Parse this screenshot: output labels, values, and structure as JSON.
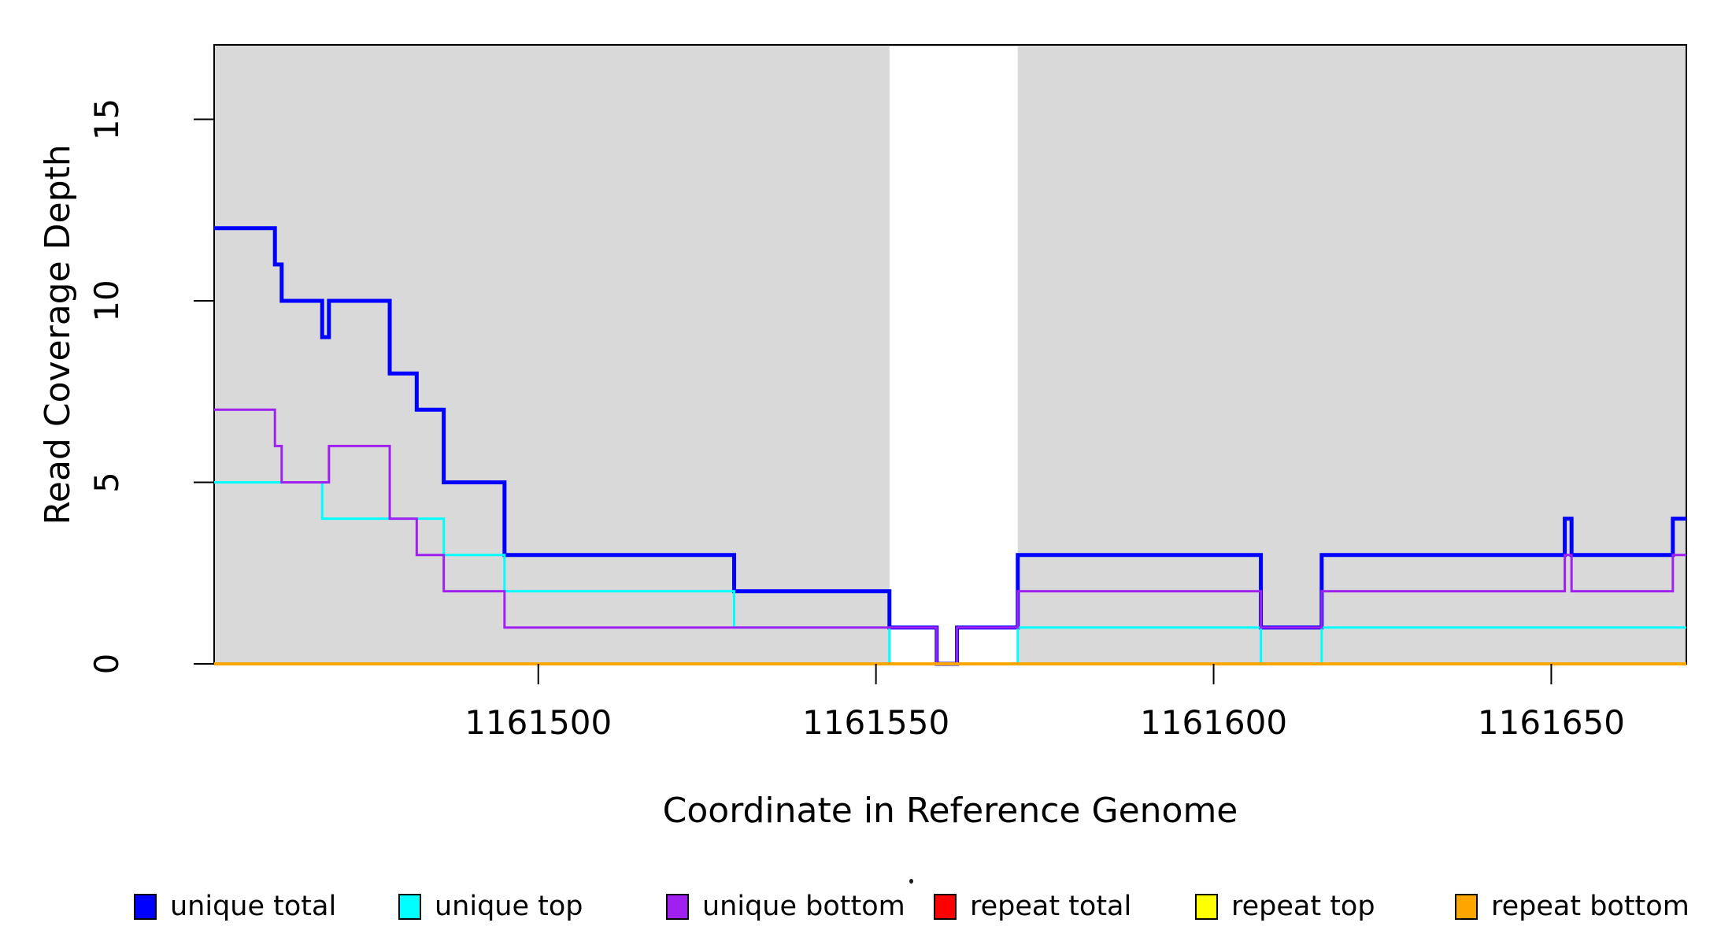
{
  "chart_data": {
    "type": "line",
    "subtype": "step",
    "title": "",
    "xlabel": "Coordinate in Reference Genome",
    "ylabel": "Read Coverage Depth",
    "xlim": [
      1161452,
      1161670
    ],
    "ylim": [
      0,
      17.05
    ],
    "x_ticks": [
      1161500,
      1161550,
      1161600,
      1161650
    ],
    "x_tick_labels": [
      "1161500",
      "1161550",
      "1161600",
      "1161650"
    ],
    "y_ticks": [
      0,
      5,
      10,
      15
    ],
    "y_tick_labels": [
      "0",
      "5",
      "10",
      "15"
    ],
    "grid": false,
    "legend_position": "bottom",
    "background_covered_color": "#d9d9d9",
    "uncovered_gap_x": [
      1161552,
      1161571
    ],
    "series": [
      {
        "name": "unique total",
        "color": "#0000ff",
        "stroke_width": 5,
        "steps": [
          [
            1161452,
            12
          ],
          [
            1161461,
            11
          ],
          [
            1161462,
            10
          ],
          [
            1161468,
            9
          ],
          [
            1161469,
            10
          ],
          [
            1161478,
            8
          ],
          [
            1161482,
            7
          ],
          [
            1161486,
            5
          ],
          [
            1161495,
            3
          ],
          [
            1161529,
            2
          ],
          [
            1161552,
            1
          ],
          [
            1161559,
            0
          ],
          [
            1161562,
            1
          ],
          [
            1161571,
            3
          ],
          [
            1161607,
            1
          ],
          [
            1161616,
            3
          ],
          [
            1161652,
            4
          ],
          [
            1161653,
            3
          ],
          [
            1161668,
            4
          ]
        ]
      },
      {
        "name": "unique top",
        "color": "#00ffff",
        "stroke_width": 3,
        "steps": [
          [
            1161452,
            5
          ],
          [
            1161468,
            4
          ],
          [
            1161486,
            3
          ],
          [
            1161495,
            2
          ],
          [
            1161529,
            1
          ],
          [
            1161552,
            0
          ],
          [
            1161571,
            1
          ],
          [
            1161607,
            0
          ],
          [
            1161616,
            1
          ]
        ]
      },
      {
        "name": "unique bottom",
        "color": "#a020f0",
        "stroke_width": 3,
        "steps": [
          [
            1161452,
            7
          ],
          [
            1161461,
            6
          ],
          [
            1161462,
            5
          ],
          [
            1161469,
            6
          ],
          [
            1161478,
            4
          ],
          [
            1161482,
            3
          ],
          [
            1161486,
            2
          ],
          [
            1161495,
            1
          ],
          [
            1161559,
            0
          ],
          [
            1161562,
            1
          ],
          [
            1161571,
            2
          ],
          [
            1161607,
            1
          ],
          [
            1161616,
            2
          ],
          [
            1161652,
            3
          ],
          [
            1161653,
            2
          ],
          [
            1161668,
            3
          ]
        ]
      },
      {
        "name": "repeat total",
        "color": "#ff0000",
        "stroke_width": 3,
        "steps": [
          [
            1161452,
            0
          ]
        ]
      },
      {
        "name": "repeat top",
        "color": "#ffff00",
        "stroke_width": 3,
        "steps": [
          [
            1161452,
            0
          ]
        ]
      },
      {
        "name": "repeat bottom",
        "color": "#ffa500",
        "stroke_width": 4,
        "steps": [
          [
            1161452,
            0
          ]
        ]
      }
    ],
    "legend": [
      {
        "label": "unique total",
        "color": "#0000ff"
      },
      {
        "label": "unique top",
        "color": "#00ffff"
      },
      {
        "label": "unique bottom",
        "color": "#a020f0"
      },
      {
        "label": "repeat total",
        "color": "#ff0000"
      },
      {
        "label": "repeat top",
        "color": "#ffff00"
      },
      {
        "label": "repeat bottom",
        "color": "#ffa500"
      }
    ]
  }
}
